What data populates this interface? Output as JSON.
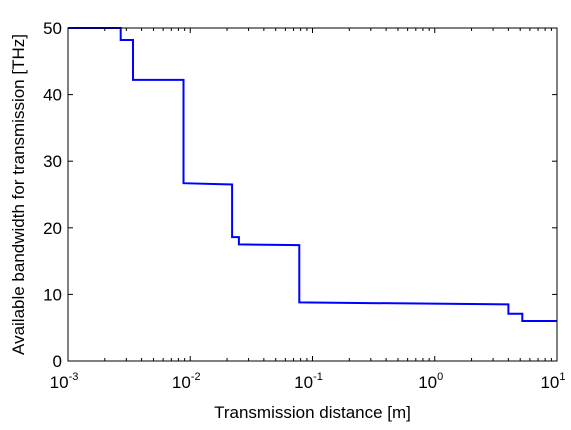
{
  "chart_data": {
    "type": "line",
    "xlabel": "Transmission distance [m]",
    "ylabel": "Available bandwidth for transmission [THz]",
    "xscale": "log",
    "xlim": [
      0.001,
      10
    ],
    "ylim": [
      0,
      50
    ],
    "grid": false,
    "legend": "none",
    "xticks": [
      {
        "base": "10",
        "exp": "-3",
        "value": 0.001
      },
      {
        "base": "10",
        "exp": "-2",
        "value": 0.01
      },
      {
        "base": "10",
        "exp": "-1",
        "value": 0.1
      },
      {
        "base": "10",
        "exp": "0",
        "value": 1
      },
      {
        "base": "10",
        "exp": "1",
        "value": 10
      }
    ],
    "yticks": [
      "0",
      "10",
      "20",
      "30",
      "40",
      "50"
    ],
    "series": [
      {
        "color": "#0000ff",
        "points": [
          {
            "x": 0.001,
            "y": 50
          },
          {
            "x": 0.0027,
            "y": 50
          },
          {
            "x": 0.0027,
            "y": 48.2
          },
          {
            "x": 0.0034,
            "y": 48.2
          },
          {
            "x": 0.0034,
            "y": 42.2
          },
          {
            "x": 0.0088,
            "y": 42.2
          },
          {
            "x": 0.0088,
            "y": 26.7
          },
          {
            "x": 0.022,
            "y": 26.5
          },
          {
            "x": 0.022,
            "y": 18.6
          },
          {
            "x": 0.025,
            "y": 18.6
          },
          {
            "x": 0.025,
            "y": 17.5
          },
          {
            "x": 0.078,
            "y": 17.4
          },
          {
            "x": 0.078,
            "y": 8.8
          },
          {
            "x": 4.0,
            "y": 8.5
          },
          {
            "x": 4.0,
            "y": 7.1
          },
          {
            "x": 5.2,
            "y": 7.1
          },
          {
            "x": 5.2,
            "y": 6.0
          },
          {
            "x": 10,
            "y": 6.0
          }
        ]
      }
    ]
  }
}
